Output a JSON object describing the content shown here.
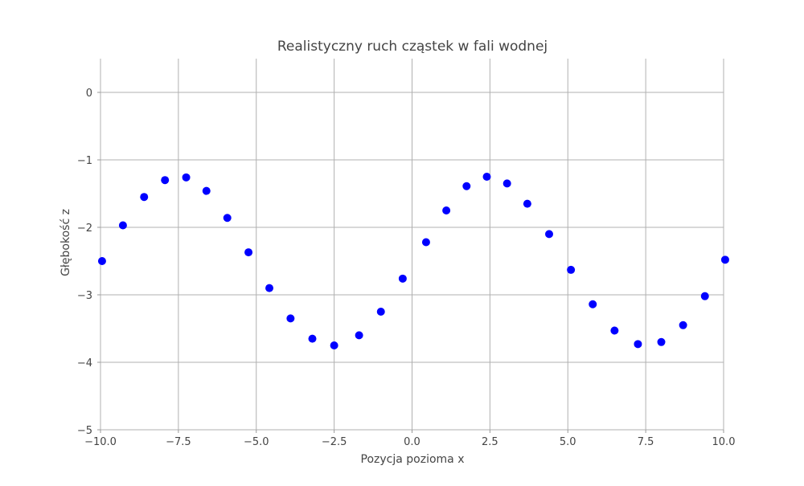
{
  "chart_data": {
    "type": "scatter",
    "title": "Realistyczny ruch cząstek w fali wodnej",
    "xlabel": "Pozycja pozioma x",
    "ylabel": "Głębokość z",
    "xlim": [
      -10,
      10
    ],
    "ylim": [
      -5,
      0.5
    ],
    "xticks": [
      -10,
      -7.5,
      -5,
      -2.5,
      0,
      2.5,
      5,
      7.5,
      10
    ],
    "xtick_labels": [
      "−10.0",
      "−7.5",
      "−5.0",
      "−2.5",
      "0.0",
      "2.5",
      "5.0",
      "7.5",
      "10.0"
    ],
    "yticks": [
      0,
      -1,
      -2,
      -3,
      -4,
      -5
    ],
    "ytick_labels": [
      "0",
      "−1",
      "−2",
      "−3",
      "−4",
      "−5"
    ],
    "grid": true,
    "marker_color": "#0000ff",
    "x": [
      -9.95,
      -9.28,
      -8.6,
      -7.93,
      -7.25,
      -6.6,
      -5.93,
      -5.25,
      -4.58,
      -3.9,
      -3.2,
      -2.5,
      -1.7,
      -1.0,
      -0.3,
      0.45,
      1.1,
      1.75,
      2.4,
      3.05,
      3.7,
      4.4,
      5.1,
      5.8,
      6.5,
      7.25,
      8.0,
      8.7,
      9.4,
      10.05
    ],
    "y": [
      -2.5,
      -1.97,
      -1.55,
      -1.3,
      -1.26,
      -1.46,
      -1.86,
      -2.37,
      -2.9,
      -3.35,
      -3.65,
      -3.75,
      -3.6,
      -3.25,
      -2.76,
      -2.22,
      -1.75,
      -1.39,
      -1.25,
      -1.35,
      -1.65,
      -2.1,
      -2.63,
      -3.14,
      -3.53,
      -3.73,
      -3.7,
      -3.45,
      -3.02,
      -2.48
    ]
  }
}
